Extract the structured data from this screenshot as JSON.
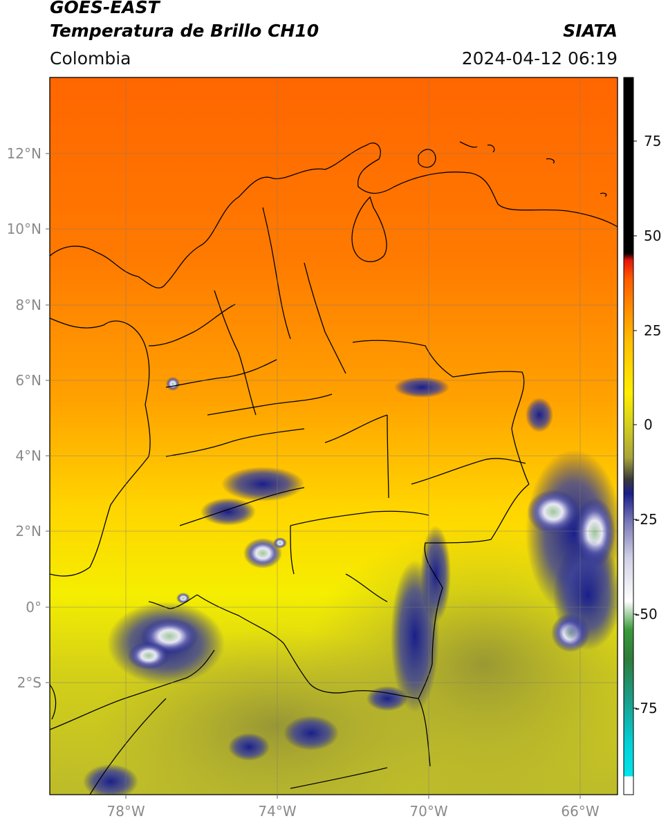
{
  "header": {
    "satellite": "GOES-EAST",
    "product": "Temperatura de Brillo CH10",
    "region": "Colombia",
    "organization": "SIATA",
    "timestamp": "2024-04-12 06:19"
  },
  "map": {
    "lat_ticks": [
      "12°N",
      "10°N",
      "8°N",
      "6°N",
      "4°N",
      "2°N",
      "0°",
      "2°S"
    ],
    "lon_ticks": [
      "78°W",
      "74°W",
      "70°W",
      "66°W"
    ],
    "grid": true
  },
  "colorbar": {
    "ticks": [
      "75",
      "50",
      "25",
      "0",
      "-25",
      "-50",
      "-75"
    ],
    "colors": {
      "black": "#000000",
      "red": "#e8160c",
      "orange": "#ff8a00",
      "yellow": "#ffee00",
      "olive": "#b7b42a",
      "navy": "#1a1f8a",
      "light": "#e8e8f4",
      "green": "#2f8a2f",
      "teal": "#20a890",
      "cyan": "#00e4ea"
    }
  },
  "colors": {
    "warm_north": "#ff6a00",
    "mid": "#ffa000",
    "south": "#c8c425",
    "cloud_cold": "#1a1f8a",
    "cloud_top": "#9fc89a"
  }
}
